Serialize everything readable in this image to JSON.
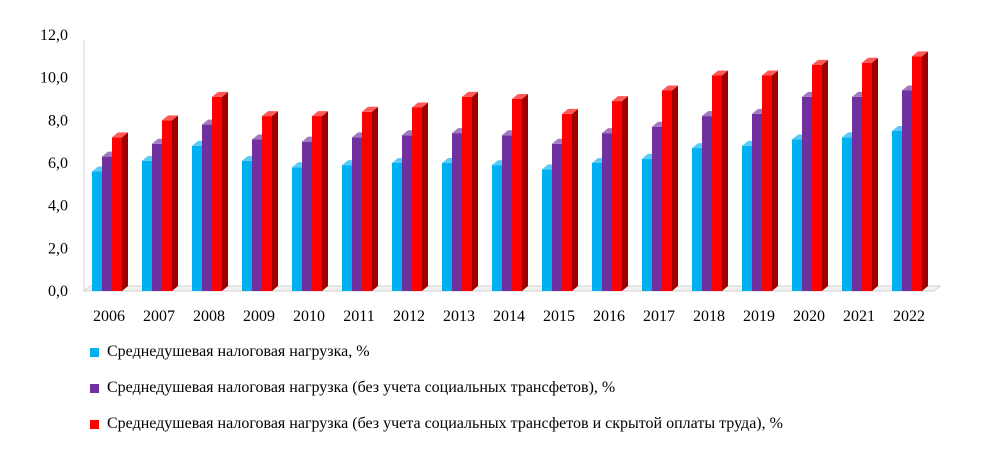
{
  "chart_data": {
    "type": "bar",
    "categories": [
      "2006",
      "2007",
      "2008",
      "2009",
      "2010",
      "2011",
      "2012",
      "2013",
      "2014",
      "2015",
      "2016",
      "2017",
      "2018",
      "2019",
      "2020",
      "2021",
      "2022"
    ],
    "series": [
      {
        "name": "Среднедушевая налоговая нагрузка, %",
        "color": "#00b0f0",
        "values": [
          5.6,
          6.1,
          6.8,
          6.1,
          5.8,
          5.9,
          6.0,
          6.0,
          5.9,
          5.7,
          6.0,
          6.2,
          6.7,
          6.8,
          7.1,
          7.2,
          7.5
        ]
      },
      {
        "name": "Среднедушевая налоговая нагрузка (без учета  социальных трансфетов), %",
        "color": "#7030a0",
        "values": [
          6.3,
          6.9,
          7.8,
          7.1,
          7.0,
          7.2,
          7.3,
          7.4,
          7.3,
          6.9,
          7.4,
          7.7,
          8.2,
          8.3,
          9.1,
          9.1,
          9.4
        ]
      },
      {
        "name": "Среднедушевая налоговая нагрузка (без учета  социальных трансфетов и скрытой оплаты труда), %",
        "color": "#ff0000",
        "values": [
          7.2,
          8.0,
          9.1,
          8.2,
          8.2,
          8.4,
          8.6,
          9.1,
          9.0,
          8.3,
          8.9,
          9.4,
          10.1,
          10.1,
          10.6,
          10.7,
          11.0
        ]
      }
    ],
    "yticks": [
      "0,0",
      "2,0",
      "4,0",
      "6,0",
      "8,0",
      "10,0",
      "12,0"
    ],
    "ylim": [
      0,
      12
    ],
    "grid": false,
    "legend_position": "bottom",
    "title": "",
    "xlabel": "",
    "ylabel": ""
  }
}
